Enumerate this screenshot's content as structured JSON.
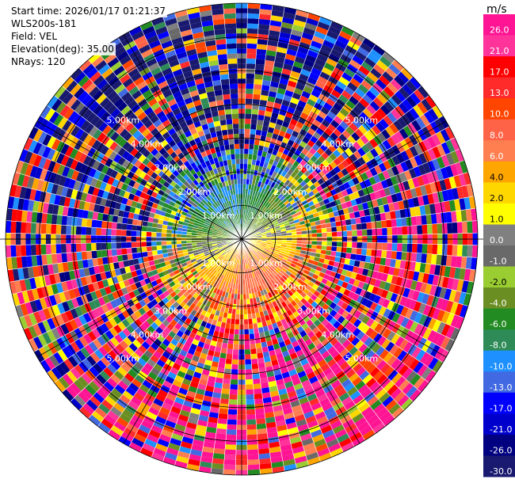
{
  "header": {
    "start_time": "Start time: 2026/01/17 01:21:37",
    "instrument": "WLS200s-181",
    "field": "Field: VEL",
    "elevation": "Elevation(deg): 35.00",
    "nrays": "NRays: 120"
  },
  "chart_data": {
    "type": "heatmap",
    "projection": "polar-ppi",
    "field": "VEL",
    "units": "m/s",
    "n_rays": 120,
    "elevation_deg": 35.0,
    "max_range_km": 7.0,
    "range_ring_labels": [
      "1.00km",
      "2.00km",
      "3.00km",
      "4.00km",
      "5.00km"
    ],
    "colorbar": {
      "title": "m/s",
      "tick_labels": [
        "26.0",
        "21.0",
        "17.0",
        "13.0",
        "10.0",
        "8.0",
        "6.0",
        "4.0",
        "2.0",
        "1.0",
        "0.0",
        "-1.0",
        "-2.0",
        "-4.0",
        "-6.0",
        "-8.0",
        "-10.0",
        "-13.0",
        "-17.0",
        "-21.0",
        "-26.0",
        "-30.0"
      ],
      "colors": [
        "#ff1493",
        "#ff3399",
        "#ff0000",
        "#ff2a2a",
        "#ff4500",
        "#ff6347",
        "#ff7f50",
        "#ffa500",
        "#ffd700",
        "#ffff00",
        "#808080",
        "#696969",
        "#9acd32",
        "#6b8e23",
        "#228b22",
        "#2e8b57",
        "#1e90ff",
        "#4169e1",
        "#0000ff",
        "#0000cd",
        "#000080",
        "#191970"
      ]
    }
  }
}
